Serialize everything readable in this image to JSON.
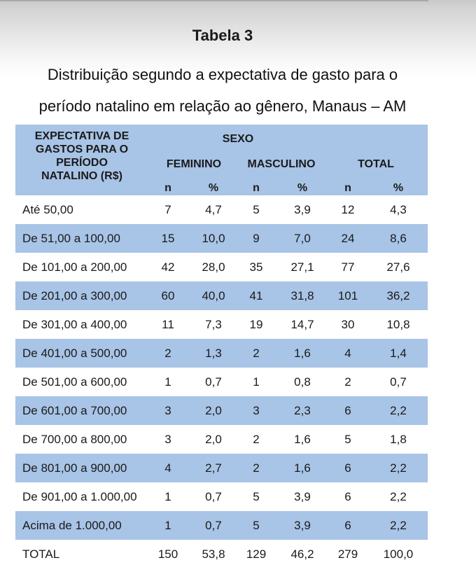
{
  "title": "Tabela 3",
  "caption": {
    "line1": "Distribuição segundo a expectativa de gasto para o",
    "line2": "período natalino em relação ao gênero, Manaus – AM"
  },
  "colors": {
    "header_bg": "#a8c4e6",
    "shaded_row_bg": "#a8c4e6"
  },
  "table": {
    "header": {
      "first_col": [
        "EXPECTATIVA DE",
        "GASTOS PARA O",
        "PERÍODO",
        "NATALINO (R$)"
      ],
      "group": "SEXO",
      "feminino": "FEMININO",
      "masculino": "MASCULINO",
      "total": "TOTAL",
      "sub": [
        "n",
        "%",
        "n",
        "%",
        "n",
        "%"
      ]
    },
    "rows": [
      {
        "label": "Até 50,00",
        "fn": "7",
        "fp": "4,7",
        "mn": "5",
        "mp": "3,9",
        "tn": "12",
        "tp": "4,3"
      },
      {
        "label": "De 51,00 a 100,00",
        "fn": "15",
        "fp": "10,0",
        "mn": "9",
        "mp": "7,0",
        "tn": "24",
        "tp": "8,6"
      },
      {
        "label": "De 101,00 a 200,00",
        "fn": "42",
        "fp": "28,0",
        "mn": "35",
        "mp": "27,1",
        "tn": "77",
        "tp": "27,6"
      },
      {
        "label": "De 201,00 a 300,00",
        "fn": "60",
        "fp": "40,0",
        "mn": "41",
        "mp": "31,8",
        "tn": "101",
        "tp": "36,2"
      },
      {
        "label": "De 301,00 a 400,00",
        "fn": "11",
        "fp": "7,3",
        "mn": "19",
        "mp": "14,7",
        "tn": "30",
        "tp": "10,8"
      },
      {
        "label": "De 401,00 a 500,00",
        "fn": "2",
        "fp": "1,3",
        "mn": "2",
        "mp": "1,6",
        "tn": "4",
        "tp": "1,4"
      },
      {
        "label": "De 501,00 a 600,00",
        "fn": "1",
        "fp": "0,7",
        "mn": "1",
        "mp": "0,8",
        "tn": "2",
        "tp": "0,7"
      },
      {
        "label": "De 601,00 a 700,00",
        "fn": "3",
        "fp": "2,0",
        "mn": "3",
        "mp": "2,3",
        "tn": "6",
        "tp": "2,2"
      },
      {
        "label": "De 700,00 a 800,00",
        "fn": "3",
        "fp": "2,0",
        "mn": "2",
        "mp": "1,6",
        "tn": "5",
        "tp": "1,8"
      },
      {
        "label": "De 801,00 a 900,00",
        "fn": "4",
        "fp": "2,7",
        "mn": "2",
        "mp": "1,6",
        "tn": "6",
        "tp": "2,2"
      },
      {
        "label": "De 901,00 a 1.000,00",
        "fn": "1",
        "fp": "0,7",
        "mn": "5",
        "mp": "3,9",
        "tn": "6",
        "tp": "2,2"
      },
      {
        "label": "Acima de 1.000,00",
        "fn": "1",
        "fp": "0,7",
        "mn": "5",
        "mp": "3,9",
        "tn": "6",
        "tp": "2,2"
      },
      {
        "label": "TOTAL",
        "fn": "150",
        "fp": "53,8",
        "mn": "129",
        "mp": "46,2",
        "tn": "279",
        "tp": "100,0"
      }
    ]
  }
}
